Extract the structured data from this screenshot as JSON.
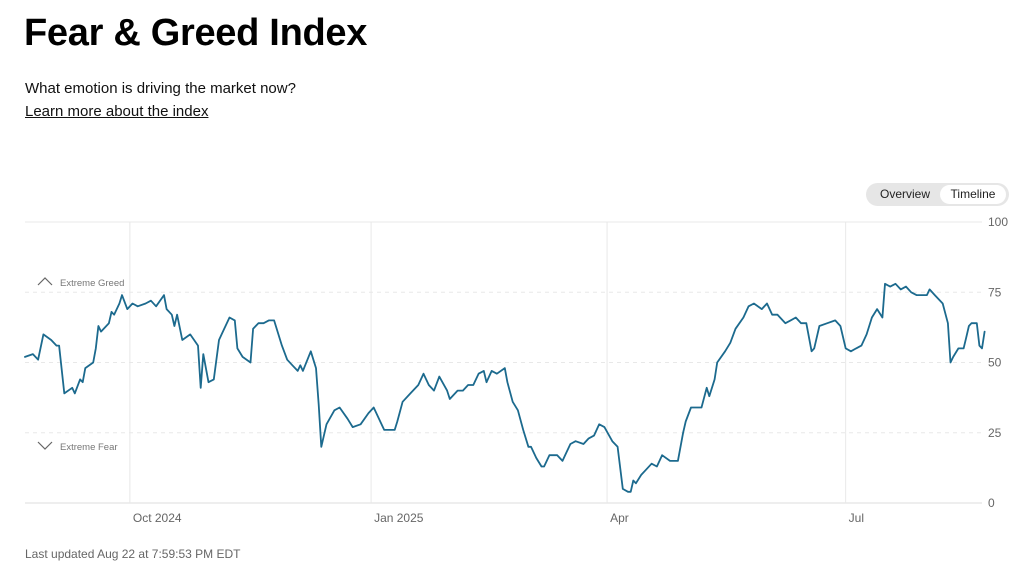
{
  "header": {
    "title": "Fear & Greed Index",
    "subtitle": "What emotion is driving the market now?",
    "learn_more": "Learn more about the index"
  },
  "toggle": {
    "overview_label": "Overview",
    "timeline_label": "Timeline",
    "selected": "Timeline"
  },
  "footer": {
    "last_updated": "Last updated Aug 22 at 7:59:53 PM EDT"
  },
  "colors": {
    "line": "#1c6a8e",
    "grid": "#e8e8e8",
    "axis_text": "#666666",
    "zone_text": "#777777"
  },
  "chart_data": {
    "type": "line",
    "title": "",
    "xlabel": "",
    "ylabel": "",
    "ylim": [
      0,
      100
    ],
    "yticks": [
      0,
      25,
      50,
      75,
      100
    ],
    "ytick_labels": [
      "0",
      "25",
      "50",
      "75",
      "100"
    ],
    "x_start": "2024-08-22",
    "x_end": "2025-08-22",
    "xticks": [
      {
        "date": "2024-10-01",
        "label": "Oct 2024"
      },
      {
        "date": "2025-01-01",
        "label": "Jan 2025"
      },
      {
        "date": "2025-04-01",
        "label": "Apr"
      },
      {
        "date": "2025-07-01",
        "label": "Jul"
      }
    ],
    "zones": [
      {
        "label": "Extreme Greed",
        "value": 75,
        "icon": "chevron-up-icon"
      },
      {
        "label": "Extreme Fear",
        "value": 25,
        "icon": "chevron-down-icon"
      }
    ],
    "grid": true,
    "series": [
      {
        "values": [
          [
            "2024-08-22",
            52
          ],
          [
            "2024-08-25",
            53
          ],
          [
            "2024-08-27",
            51
          ],
          [
            "2024-08-29",
            60
          ],
          [
            "2024-09-01",
            58
          ],
          [
            "2024-09-03",
            56
          ],
          [
            "2024-09-04",
            56
          ],
          [
            "2024-09-06",
            39
          ],
          [
            "2024-09-09",
            41
          ],
          [
            "2024-09-10",
            39
          ],
          [
            "2024-09-12",
            44
          ],
          [
            "2024-09-13",
            43
          ],
          [
            "2024-09-14",
            48
          ],
          [
            "2024-09-17",
            50
          ],
          [
            "2024-09-18",
            55
          ],
          [
            "2024-09-19",
            63
          ],
          [
            "2024-09-20",
            61
          ],
          [
            "2024-09-23",
            64
          ],
          [
            "2024-09-24",
            68
          ],
          [
            "2024-09-25",
            67
          ],
          [
            "2024-09-27",
            71
          ],
          [
            "2024-09-28",
            74
          ],
          [
            "2024-09-30",
            69
          ],
          [
            "2024-10-02",
            71
          ],
          [
            "2024-10-04",
            70
          ],
          [
            "2024-10-07",
            71
          ],
          [
            "2024-10-09",
            72
          ],
          [
            "2024-10-11",
            70
          ],
          [
            "2024-10-14",
            74
          ],
          [
            "2024-10-15",
            69
          ],
          [
            "2024-10-17",
            67
          ],
          [
            "2024-10-18",
            63
          ],
          [
            "2024-10-19",
            67
          ],
          [
            "2024-10-21",
            58
          ],
          [
            "2024-10-24",
            60
          ],
          [
            "2024-10-27",
            56
          ],
          [
            "2024-10-28",
            41
          ],
          [
            "2024-10-29",
            53
          ],
          [
            "2024-10-31",
            43
          ],
          [
            "2024-11-02",
            44
          ],
          [
            "2024-11-04",
            58
          ],
          [
            "2024-11-05",
            60
          ],
          [
            "2024-11-08",
            66
          ],
          [
            "2024-11-10",
            65
          ],
          [
            "2024-11-11",
            55
          ],
          [
            "2024-11-13",
            52
          ],
          [
            "2024-11-16",
            50
          ],
          [
            "2024-11-17",
            62
          ],
          [
            "2024-11-19",
            64
          ],
          [
            "2024-11-21",
            64
          ],
          [
            "2024-11-23",
            65
          ],
          [
            "2024-11-25",
            65
          ],
          [
            "2024-11-28",
            56
          ],
          [
            "2024-11-30",
            51
          ],
          [
            "2024-12-02",
            49
          ],
          [
            "2024-12-04",
            47
          ],
          [
            "2024-12-05",
            49
          ],
          [
            "2024-12-06",
            47
          ],
          [
            "2024-12-09",
            54
          ],
          [
            "2024-12-11",
            48
          ],
          [
            "2024-12-12",
            35
          ],
          [
            "2024-12-13",
            20
          ],
          [
            "2024-12-15",
            28
          ],
          [
            "2024-12-18",
            33
          ],
          [
            "2024-12-20",
            34
          ],
          [
            "2024-12-23",
            30
          ],
          [
            "2024-12-25",
            27
          ],
          [
            "2024-12-28",
            28
          ],
          [
            "2024-12-31",
            32
          ],
          [
            "2025-01-02",
            34
          ],
          [
            "2025-01-06",
            26
          ],
          [
            "2025-01-07",
            26
          ],
          [
            "2025-01-10",
            26
          ],
          [
            "2025-01-11",
            29
          ],
          [
            "2025-01-13",
            36
          ],
          [
            "2025-01-16",
            39
          ],
          [
            "2025-01-19",
            42
          ],
          [
            "2025-01-21",
            46
          ],
          [
            "2025-01-23",
            42
          ],
          [
            "2025-01-25",
            40
          ],
          [
            "2025-01-27",
            45
          ],
          [
            "2025-01-30",
            40
          ],
          [
            "2025-01-31",
            37
          ],
          [
            "2025-02-03",
            40
          ],
          [
            "2025-02-05",
            40
          ],
          [
            "2025-02-07",
            42
          ],
          [
            "2025-02-09",
            42
          ],
          [
            "2025-02-11",
            46
          ],
          [
            "2025-02-13",
            47
          ],
          [
            "2025-02-14",
            43
          ],
          [
            "2025-02-16",
            47
          ],
          [
            "2025-02-18",
            46
          ],
          [
            "2025-02-21",
            48
          ],
          [
            "2025-02-22",
            43
          ],
          [
            "2025-02-24",
            36
          ],
          [
            "2025-02-26",
            33
          ],
          [
            "2025-02-28",
            26
          ],
          [
            "2025-03-02",
            20
          ],
          [
            "2025-03-03",
            20
          ],
          [
            "2025-03-05",
            16
          ],
          [
            "2025-03-07",
            13
          ],
          [
            "2025-03-08",
            13
          ],
          [
            "2025-03-10",
            17
          ],
          [
            "2025-03-13",
            17
          ],
          [
            "2025-03-15",
            15
          ],
          [
            "2025-03-16",
            17
          ],
          [
            "2025-03-18",
            21
          ],
          [
            "2025-03-20",
            22
          ],
          [
            "2025-03-23",
            21
          ],
          [
            "2025-03-25",
            23
          ],
          [
            "2025-03-27",
            24
          ],
          [
            "2025-03-29",
            28
          ],
          [
            "2025-03-31",
            27
          ],
          [
            "2025-04-03",
            22
          ],
          [
            "2025-04-05",
            20
          ],
          [
            "2025-04-07",
            5
          ],
          [
            "2025-04-09",
            4
          ],
          [
            "2025-04-10",
            4
          ],
          [
            "2025-04-11",
            8
          ],
          [
            "2025-04-12",
            7
          ],
          [
            "2025-04-14",
            10
          ],
          [
            "2025-04-16",
            12
          ],
          [
            "2025-04-18",
            14
          ],
          [
            "2025-04-20",
            13
          ],
          [
            "2025-04-22",
            17
          ],
          [
            "2025-04-25",
            15
          ],
          [
            "2025-04-28",
            15
          ],
          [
            "2025-04-30",
            25
          ],
          [
            "2025-05-01",
            29
          ],
          [
            "2025-05-03",
            34
          ],
          [
            "2025-05-06",
            34
          ],
          [
            "2025-05-07",
            34
          ],
          [
            "2025-05-09",
            41
          ],
          [
            "2025-05-10",
            38
          ],
          [
            "2025-05-12",
            44
          ],
          [
            "2025-05-13",
            50
          ],
          [
            "2025-05-16",
            54
          ],
          [
            "2025-05-18",
            57
          ],
          [
            "2025-05-20",
            62
          ],
          [
            "2025-05-23",
            66
          ],
          [
            "2025-05-25",
            70
          ],
          [
            "2025-05-27",
            71
          ],
          [
            "2025-05-30",
            69
          ],
          [
            "2025-06-01",
            71
          ],
          [
            "2025-06-03",
            67
          ],
          [
            "2025-06-05",
            67
          ],
          [
            "2025-06-08",
            64
          ],
          [
            "2025-06-10",
            65
          ],
          [
            "2025-06-12",
            66
          ],
          [
            "2025-06-14",
            64
          ],
          [
            "2025-06-16",
            64
          ],
          [
            "2025-06-18",
            54
          ],
          [
            "2025-06-19",
            55
          ],
          [
            "2025-06-21",
            63
          ],
          [
            "2025-06-24",
            64
          ],
          [
            "2025-06-27",
            65
          ],
          [
            "2025-06-29",
            63
          ],
          [
            "2025-07-01",
            55
          ],
          [
            "2025-07-03",
            54
          ],
          [
            "2025-07-05",
            55
          ],
          [
            "2025-07-07",
            56
          ],
          [
            "2025-07-09",
            60
          ],
          [
            "2025-07-11",
            66
          ],
          [
            "2025-07-13",
            69
          ],
          [
            "2025-07-15",
            66
          ],
          [
            "2025-07-16",
            78
          ],
          [
            "2025-07-18",
            77
          ],
          [
            "2025-07-20",
            78
          ],
          [
            "2025-07-22",
            76
          ],
          [
            "2025-07-24",
            77
          ],
          [
            "2025-07-26",
            75
          ],
          [
            "2025-07-28",
            74
          ],
          [
            "2025-07-30",
            74
          ],
          [
            "2025-08-01",
            74
          ],
          [
            "2025-08-02",
            76
          ],
          [
            "2025-08-04",
            74
          ],
          [
            "2025-08-07",
            71
          ],
          [
            "2025-08-09",
            64
          ],
          [
            "2025-08-10",
            50
          ],
          [
            "2025-08-11",
            52
          ],
          [
            "2025-08-13",
            55
          ],
          [
            "2025-08-14",
            55
          ],
          [
            "2025-08-15",
            55
          ],
          [
            "2025-08-16",
            59
          ],
          [
            "2025-08-17",
            63
          ],
          [
            "2025-08-18",
            64
          ],
          [
            "2025-08-20",
            64
          ],
          [
            "2025-08-21",
            56
          ],
          [
            "2025-08-22",
            55
          ],
          [
            "2025-08-23",
            61
          ]
        ]
      }
    ]
  }
}
